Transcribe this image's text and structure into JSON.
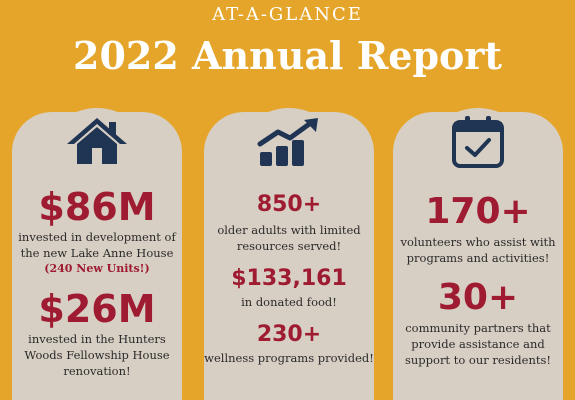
{
  "header": {
    "kicker": "AT-A-GLANCE",
    "title": "2022 Annual Report"
  },
  "colors": {
    "background": "#e5a52a",
    "card": "#d8cfc4",
    "accent": "#9e1b32",
    "icon": "#1f3553"
  },
  "left": {
    "icon": "house-icon",
    "stat1": "$86M",
    "desc1a": "invested in development of",
    "desc1b": "the new Lake Anne House",
    "note1": "(240 New Units!)",
    "stat2": "$26M",
    "desc2a": "invested in the Hunters",
    "desc2b": "Woods Fellowship House",
    "desc2c": "renovation!"
  },
  "middle": {
    "icon": "growth-chart-icon",
    "stat1": "850+",
    "desc1a": "older adults with limited",
    "desc1b": "resources served!",
    "stat2": "$133,161",
    "desc2": "in donated food!",
    "stat3": "230+",
    "desc3": "wellness programs provided!"
  },
  "right": {
    "icon": "calendar-check-icon",
    "stat1": "170+",
    "desc1a": "volunteers who assist with",
    "desc1b": "programs and activities!",
    "stat2": "30+",
    "desc2a": "community partners that",
    "desc2b": "provide assistance and",
    "desc2c": "support to our residents!"
  }
}
